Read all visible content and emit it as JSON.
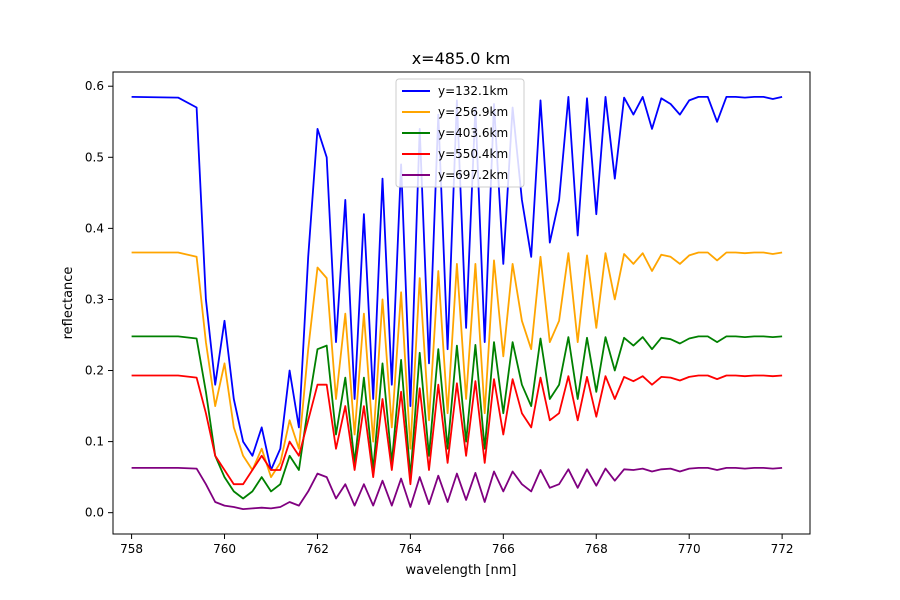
{
  "chart_data": {
    "type": "line",
    "title": "x=485.0 km",
    "xlabel": "wavelength [nm]",
    "ylabel": "reflectance",
    "xlim": [
      757.6,
      772.6
    ],
    "ylim": [
      -0.03,
      0.62
    ],
    "xticks": [
      758,
      760,
      762,
      764,
      766,
      768,
      770,
      772
    ],
    "xtick_labels": [
      "758",
      "760",
      "762",
      "764",
      "766",
      "768",
      "770",
      "772"
    ],
    "yticks": [
      0.0,
      0.1,
      0.2,
      0.3,
      0.4,
      0.5,
      0.6
    ],
    "ytick_labels": [
      "0.0",
      "0.1",
      "0.2",
      "0.3",
      "0.4",
      "0.5",
      "0.6"
    ],
    "grid": false,
    "legend_position": "upper-center",
    "x": [
      758.0,
      759.0,
      759.4,
      759.6,
      759.8,
      760.0,
      760.2,
      760.4,
      760.6,
      760.8,
      761.0,
      761.2,
      761.4,
      761.6,
      761.8,
      762.0,
      762.2,
      762.4,
      762.6,
      762.8,
      763.0,
      763.2,
      763.4,
      763.6,
      763.8,
      764.0,
      764.2,
      764.4,
      764.6,
      764.8,
      765.0,
      765.2,
      765.4,
      765.6,
      765.8,
      766.0,
      766.2,
      766.4,
      766.6,
      766.8,
      767.0,
      767.2,
      767.4,
      767.6,
      767.8,
      768.0,
      768.2,
      768.4,
      768.6,
      768.8,
      769.0,
      769.2,
      769.4,
      769.6,
      769.8,
      770.0,
      770.2,
      770.4,
      770.6,
      770.8,
      771.0,
      771.2,
      771.4,
      771.6,
      771.8,
      772.0
    ],
    "series": [
      {
        "name": "y=132.1km",
        "color": "#0000ff",
        "values": [
          0.585,
          0.584,
          0.57,
          0.3,
          0.18,
          0.27,
          0.16,
          0.1,
          0.08,
          0.12,
          0.06,
          0.09,
          0.2,
          0.12,
          0.36,
          0.54,
          0.5,
          0.24,
          0.44,
          0.16,
          0.42,
          0.16,
          0.47,
          0.18,
          0.49,
          0.15,
          0.54,
          0.21,
          0.56,
          0.23,
          0.58,
          0.26,
          0.57,
          0.24,
          0.575,
          0.35,
          0.57,
          0.44,
          0.36,
          0.58,
          0.38,
          0.44,
          0.585,
          0.39,
          0.583,
          0.42,
          0.585,
          0.47,
          0.584,
          0.56,
          0.585,
          0.54,
          0.583,
          0.575,
          0.56,
          0.58,
          0.585,
          0.585,
          0.55,
          0.585,
          0.585,
          0.584,
          0.585,
          0.585,
          0.582,
          0.585
        ]
      },
      {
        "name": "y=256.9km",
        "color": "#ffa500",
        "values": [
          0.366,
          0.366,
          0.36,
          0.24,
          0.15,
          0.21,
          0.12,
          0.08,
          0.06,
          0.09,
          0.05,
          0.07,
          0.13,
          0.09,
          0.23,
          0.345,
          0.33,
          0.16,
          0.28,
          0.11,
          0.28,
          0.1,
          0.3,
          0.12,
          0.31,
          0.09,
          0.33,
          0.13,
          0.34,
          0.14,
          0.35,
          0.16,
          0.35,
          0.14,
          0.355,
          0.22,
          0.35,
          0.27,
          0.23,
          0.36,
          0.24,
          0.27,
          0.365,
          0.24,
          0.362,
          0.26,
          0.365,
          0.3,
          0.364,
          0.35,
          0.365,
          0.34,
          0.363,
          0.36,
          0.35,
          0.362,
          0.366,
          0.366,
          0.355,
          0.366,
          0.366,
          0.365,
          0.366,
          0.366,
          0.364,
          0.366
        ]
      },
      {
        "name": "y=403.6km",
        "color": "#008000",
        "values": [
          0.248,
          0.248,
          0.245,
          0.17,
          0.08,
          0.05,
          0.03,
          0.02,
          0.03,
          0.05,
          0.03,
          0.04,
          0.08,
          0.06,
          0.15,
          0.23,
          0.235,
          0.11,
          0.19,
          0.07,
          0.19,
          0.06,
          0.21,
          0.07,
          0.215,
          0.05,
          0.225,
          0.08,
          0.23,
          0.09,
          0.235,
          0.1,
          0.236,
          0.09,
          0.24,
          0.14,
          0.24,
          0.18,
          0.15,
          0.245,
          0.16,
          0.18,
          0.247,
          0.16,
          0.246,
          0.17,
          0.247,
          0.2,
          0.246,
          0.235,
          0.247,
          0.23,
          0.246,
          0.244,
          0.238,
          0.245,
          0.248,
          0.248,
          0.24,
          0.248,
          0.248,
          0.247,
          0.248,
          0.248,
          0.247,
          0.248
        ]
      },
      {
        "name": "y=550.4km",
        "color": "#ff0000",
        "values": [
          0.193,
          0.193,
          0.19,
          0.14,
          0.08,
          0.06,
          0.04,
          0.04,
          0.06,
          0.08,
          0.06,
          0.06,
          0.1,
          0.08,
          0.13,
          0.18,
          0.18,
          0.09,
          0.15,
          0.06,
          0.15,
          0.05,
          0.16,
          0.06,
          0.17,
          0.04,
          0.175,
          0.06,
          0.18,
          0.07,
          0.182,
          0.08,
          0.185,
          0.07,
          0.188,
          0.11,
          0.188,
          0.14,
          0.12,
          0.19,
          0.13,
          0.14,
          0.192,
          0.13,
          0.191,
          0.135,
          0.192,
          0.16,
          0.191,
          0.185,
          0.192,
          0.18,
          0.191,
          0.19,
          0.186,
          0.191,
          0.193,
          0.193,
          0.188,
          0.193,
          0.193,
          0.192,
          0.193,
          0.193,
          0.192,
          0.193
        ]
      },
      {
        "name": "y=697.2km",
        "color": "#800080",
        "values": [
          0.063,
          0.063,
          0.062,
          0.04,
          0.015,
          0.01,
          0.008,
          0.005,
          0.006,
          0.007,
          0.006,
          0.008,
          0.015,
          0.01,
          0.03,
          0.055,
          0.05,
          0.02,
          0.04,
          0.01,
          0.04,
          0.01,
          0.045,
          0.01,
          0.048,
          0.008,
          0.05,
          0.012,
          0.052,
          0.015,
          0.055,
          0.018,
          0.056,
          0.015,
          0.058,
          0.03,
          0.058,
          0.04,
          0.03,
          0.06,
          0.035,
          0.04,
          0.061,
          0.035,
          0.061,
          0.038,
          0.062,
          0.045,
          0.061,
          0.06,
          0.062,
          0.058,
          0.061,
          0.062,
          0.058,
          0.062,
          0.063,
          0.063,
          0.06,
          0.063,
          0.063,
          0.062,
          0.063,
          0.063,
          0.062,
          0.063
        ]
      }
    ]
  }
}
